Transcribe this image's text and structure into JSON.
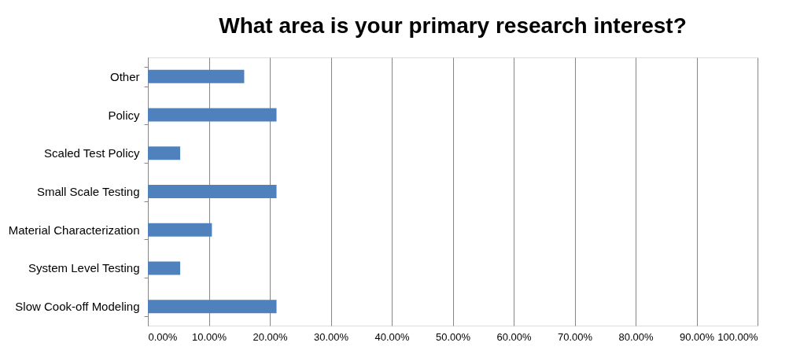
{
  "chart_data": {
    "type": "bar",
    "orientation": "horizontal",
    "title": "What area is your primary research interest?",
    "categories": [
      "Other",
      "Policy",
      "Scaled Test Policy",
      "Small Scale Testing",
      "Material Characterization",
      "System Level Testing",
      "Slow Cook-off Modeling"
    ],
    "values": [
      15.8,
      21.1,
      5.3,
      21.1,
      10.5,
      5.3,
      21.1
    ],
    "color": "#4f81bd",
    "xlim": [
      0,
      100
    ],
    "xticks": [
      {
        "value": 0,
        "label": "0.00%"
      },
      {
        "value": 10,
        "label": "10.00%"
      },
      {
        "value": 20,
        "label": "20.00%"
      },
      {
        "value": 30,
        "label": "30.00%"
      },
      {
        "value": 40,
        "label": "40.00%"
      },
      {
        "value": 50,
        "label": "50.00%"
      },
      {
        "value": 60,
        "label": "60.00%"
      },
      {
        "value": 70,
        "label": "70.00%"
      },
      {
        "value": 80,
        "label": "80.00%"
      },
      {
        "value": 90,
        "label": "90.00%"
      },
      {
        "value": 100,
        "label": "100.00%"
      }
    ],
    "grid": "x"
  }
}
